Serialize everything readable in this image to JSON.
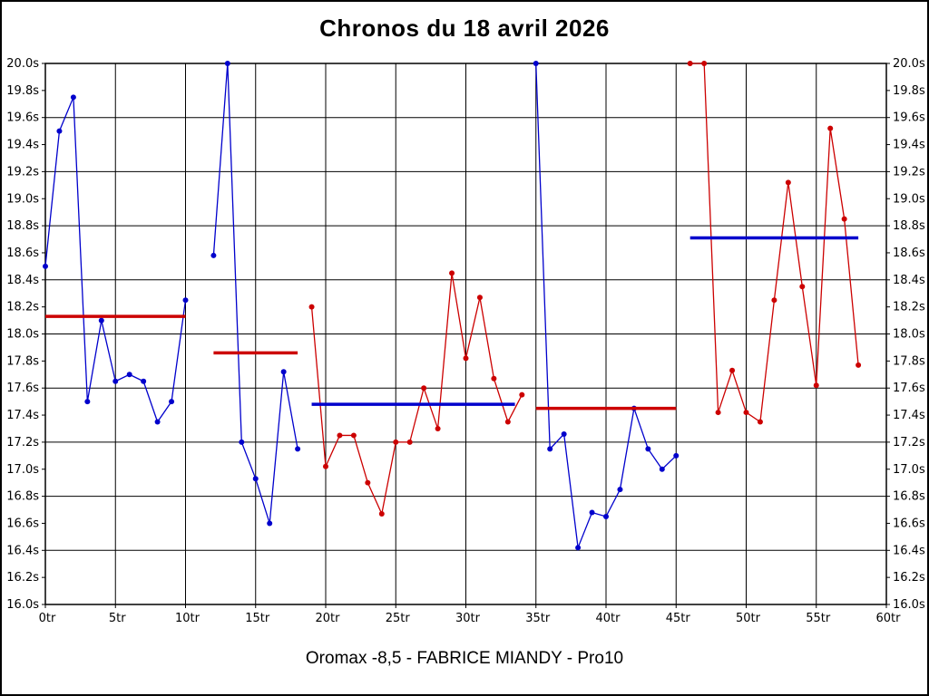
{
  "title": "Chronos du 18 avril 2026",
  "caption": "Oromax -8,5 - FABRICE MIANDY - Pro10",
  "chart_data": {
    "type": "line",
    "title": "Chronos du 18 avril 2026",
    "subtitle": "Oromax -8,5 - FABRICE MIANDY - Pro10",
    "x_unit": "tr",
    "y_unit": "s",
    "xlim": [
      0,
      60
    ],
    "ylim": [
      16.0,
      20.0
    ],
    "grid": {
      "x_step": 5,
      "y_step": 0.4
    },
    "x_tick_values": [
      0,
      5,
      10,
      15,
      20,
      25,
      30,
      35,
      40,
      45,
      50,
      55,
      60
    ],
    "x_tick_labels": [
      "0tr",
      "5tr",
      "10tr",
      "15tr",
      "20tr",
      "25tr",
      "30tr",
      "35tr",
      "40tr",
      "45tr",
      "50tr",
      "55tr",
      "60tr"
    ],
    "y_tick_values": [
      16.0,
      16.2,
      16.4,
      16.6,
      16.8,
      17.0,
      17.2,
      17.4,
      17.6,
      17.8,
      18.0,
      18.2,
      18.4,
      18.6,
      18.8,
      19.0,
      19.2,
      19.4,
      19.6,
      19.8,
      20.0
    ],
    "y_tick_labels": [
      "16.0s",
      "16.2s",
      "16.4s",
      "16.6s",
      "16.8s",
      "17.0s",
      "17.2s",
      "17.4s",
      "17.6s",
      "17.8s",
      "18.0s",
      "18.2s",
      "18.4s",
      "18.6s",
      "18.8s",
      "19.0s",
      "19.2s",
      "19.4s",
      "19.6s",
      "19.8s",
      "20.0s"
    ],
    "colors": {
      "blue": "#0000cc",
      "red": "#cc0000"
    },
    "series": [
      {
        "name": "stint-1-lap-times",
        "color": "blue",
        "points": [
          [
            0,
            18.5
          ],
          [
            1,
            19.5
          ],
          [
            2,
            19.75
          ],
          [
            3,
            17.5
          ],
          [
            4,
            18.1
          ],
          [
            5,
            17.65
          ],
          [
            6,
            17.7
          ],
          [
            7,
            17.65
          ],
          [
            8,
            17.35
          ],
          [
            9,
            17.5
          ],
          [
            10,
            18.25
          ]
        ]
      },
      {
        "name": "stint-2-lap-times",
        "color": "blue",
        "points": [
          [
            12,
            18.58
          ],
          [
            13,
            20.0
          ],
          [
            14,
            17.2
          ],
          [
            15,
            16.93
          ],
          [
            16,
            16.6
          ],
          [
            17,
            17.72
          ],
          [
            18,
            17.15
          ]
        ]
      },
      {
        "name": "stint-3-lap-times",
        "color": "red",
        "points": [
          [
            19,
            18.2
          ],
          [
            20,
            17.02
          ],
          [
            21,
            17.25
          ],
          [
            22,
            17.25
          ],
          [
            23,
            16.9
          ],
          [
            24,
            16.67
          ],
          [
            25,
            17.2
          ],
          [
            26,
            17.2
          ],
          [
            27,
            17.6
          ],
          [
            28,
            17.3
          ],
          [
            29,
            18.45
          ],
          [
            30,
            17.82
          ],
          [
            31,
            18.27
          ],
          [
            32,
            17.67
          ],
          [
            33,
            17.35
          ],
          [
            34,
            17.55
          ]
        ]
      },
      {
        "name": "stint-4-lap-times",
        "color": "blue",
        "points": [
          [
            35,
            20.0
          ],
          [
            36,
            17.15
          ],
          [
            37,
            17.26
          ],
          [
            38,
            16.42
          ],
          [
            39,
            16.68
          ],
          [
            40,
            16.65
          ],
          [
            41,
            16.85
          ],
          [
            42,
            17.45
          ],
          [
            43,
            17.15
          ],
          [
            44,
            17.0
          ],
          [
            45,
            17.1
          ]
        ]
      },
      {
        "name": "stint-5-lap-times",
        "color": "red",
        "points": [
          [
            46,
            20.0
          ],
          [
            47,
            20.0
          ],
          [
            48,
            17.42
          ],
          [
            49,
            17.73
          ],
          [
            50,
            17.42
          ],
          [
            51,
            17.35
          ],
          [
            52,
            18.25
          ],
          [
            53,
            19.12
          ],
          [
            54,
            18.35
          ],
          [
            55,
            17.62
          ],
          [
            56,
            19.52
          ],
          [
            57,
            18.85
          ],
          [
            58,
            17.77
          ]
        ]
      }
    ],
    "average_lines": [
      {
        "name": "average-stint-1",
        "color": "red",
        "y": 18.13,
        "x1": 0,
        "x2": 10
      },
      {
        "name": "average-stint-2",
        "color": "red",
        "y": 17.86,
        "x1": 12,
        "x2": 18
      },
      {
        "name": "average-stint-3",
        "color": "blue",
        "y": 17.48,
        "x1": 19,
        "x2": 33.5
      },
      {
        "name": "average-stint-4",
        "color": "red",
        "y": 17.45,
        "x1": 35,
        "x2": 45
      },
      {
        "name": "average-stint-5",
        "color": "blue",
        "y": 18.71,
        "x1": 46,
        "x2": 58
      }
    ],
    "legend": "none"
  }
}
